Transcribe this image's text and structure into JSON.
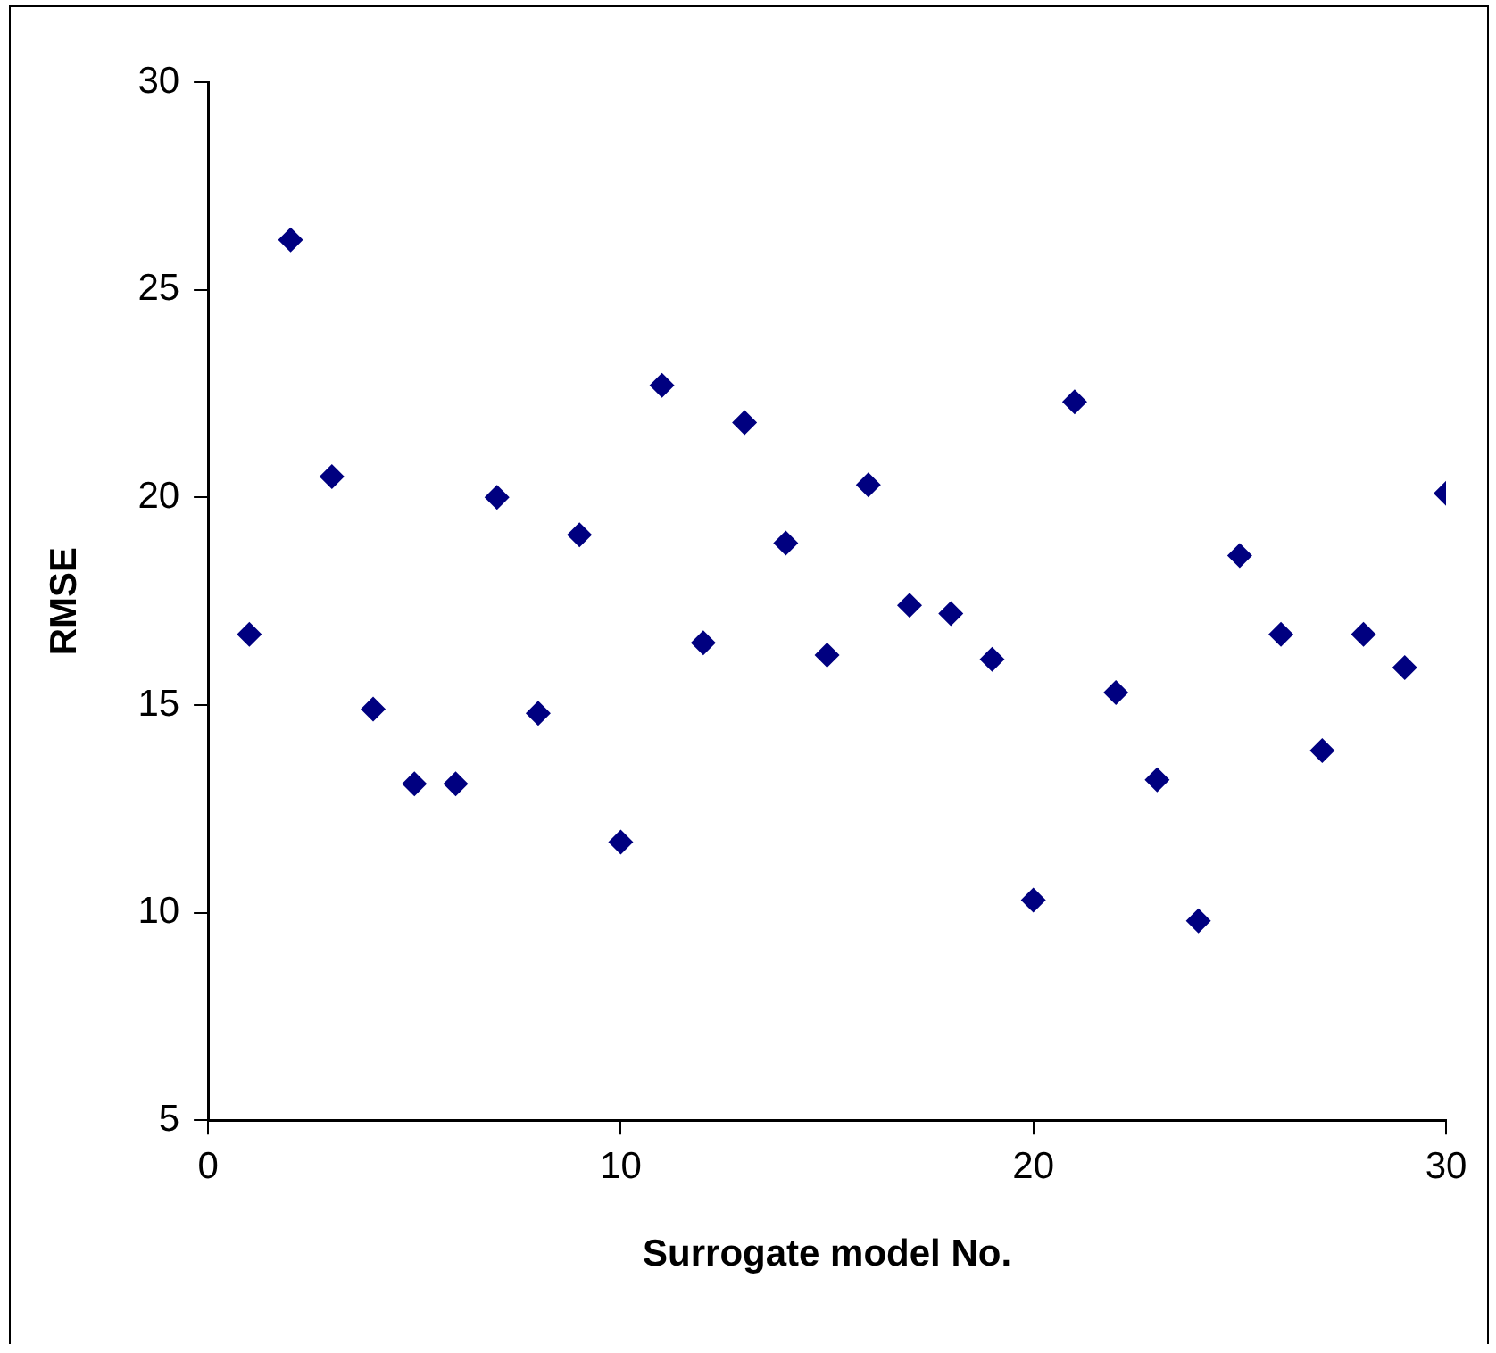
{
  "chart_data": {
    "type": "scatter",
    "xlabel": "Surrogate model No.",
    "ylabel": "RMSE",
    "x": [
      1,
      2,
      3,
      4,
      5,
      6,
      7,
      8,
      9,
      10,
      11,
      12,
      13,
      14,
      15,
      16,
      17,
      18,
      19,
      20,
      21,
      22,
      23,
      24,
      25,
      26,
      27,
      28,
      29,
      30
    ],
    "series": [
      {
        "color": "#000080",
        "values": [
          16.7,
          26.2,
          20.5,
          14.9,
          13.1,
          13.1,
          20.0,
          14.8,
          19.1,
          11.7,
          22.7,
          16.5,
          21.8,
          18.9,
          16.2,
          20.3,
          17.4,
          17.2,
          16.1,
          10.3,
          22.3,
          15.3,
          13.2,
          9.8,
          18.6,
          16.7,
          13.9,
          16.7,
          15.9,
          20.1
        ]
      }
    ],
    "xlim": [
      0,
      30
    ],
    "xticks": [
      0,
      10,
      20,
      30
    ],
    "ylim": [
      5,
      30
    ],
    "yticks": [
      5,
      10,
      15,
      20,
      25,
      30
    ],
    "grid": false,
    "legend": false,
    "marker": "diamond"
  }
}
